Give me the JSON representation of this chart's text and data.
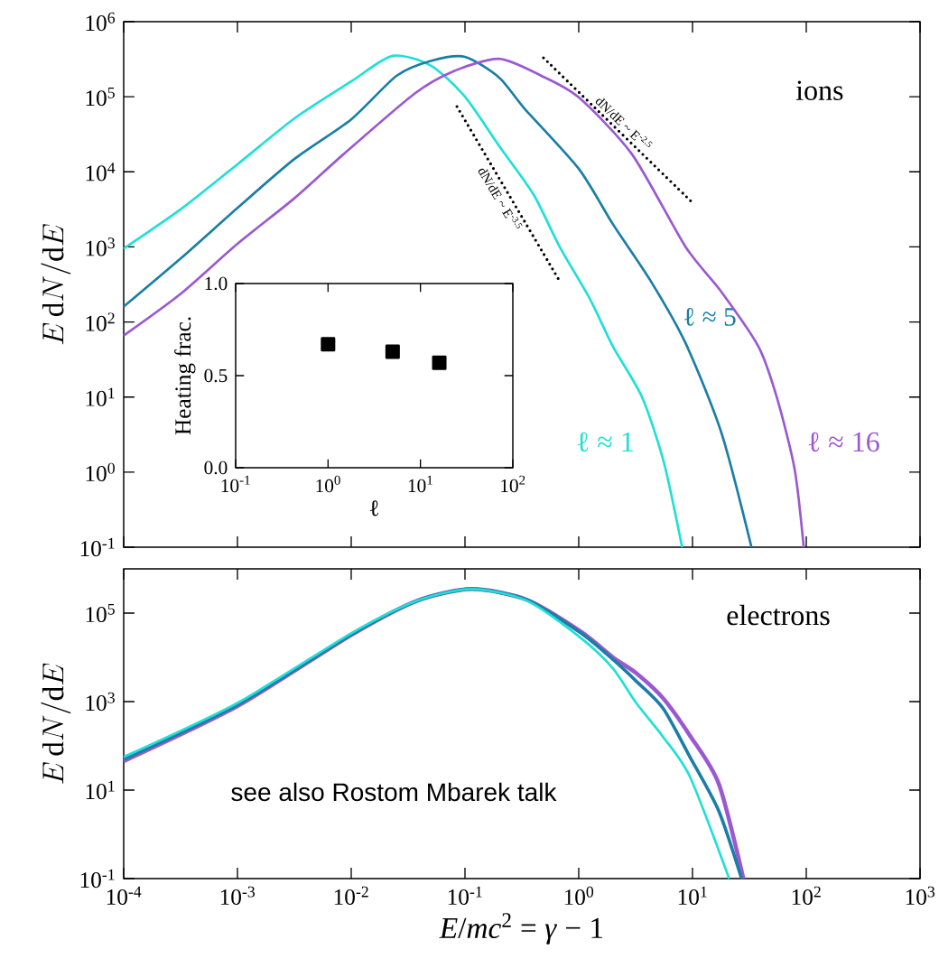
{
  "chart_data": [
    {
      "type": "line",
      "ylabel": "E\\,\\mathrm{d}N/\\mathrm{d}E",
      "log": "xy",
      "tick_labels": "y",
      "xlim": [
        0.0001,
        1000
      ],
      "ylim": [
        0.1,
        1000000
      ],
      "xticks": [
        {
          "value": 0.0001,
          "label": null
        },
        {
          "value": 0.001,
          "label": null
        },
        {
          "value": 0.01,
          "label": null
        },
        {
          "value": 0.1,
          "label": null
        },
        {
          "value": 1,
          "label": null
        },
        {
          "value": 10,
          "label": null
        },
        {
          "value": 100,
          "label": null
        },
        {
          "value": 1000,
          "label": null
        }
      ],
      "yticks": [
        {
          "value": 0.1,
          "label": "10$^{-1}$"
        },
        {
          "value": 1,
          "label": "10$^{0}$"
        },
        {
          "value": 10,
          "label": "10$^{1}$"
        },
        {
          "value": 100,
          "label": "10$^{2}$"
        },
        {
          "value": 1000,
          "label": "10$^{3}$"
        },
        {
          "value": 10000,
          "label": "10$^{4}$"
        },
        {
          "value": 100000,
          "label": "10$^{5}$"
        },
        {
          "value": 1000000,
          "label": "10$^{6}$"
        }
      ],
      "annotations": [
        "ions"
      ],
      "series": [
        {
          "name": "ℓ ≈ 1",
          "color": "#1fe0d6",
          "x": [
            0.0001,
            0.00032,
            0.001,
            0.0032,
            0.01,
            0.023,
            0.05,
            0.1,
            0.2,
            0.4,
            0.68,
            1.26,
            2.0,
            3.6,
            5.6,
            8.1
          ],
          "values": [
            950,
            3200,
            12600,
            52000,
            160000,
            350000,
            260000,
            100000,
            22000,
            5000,
            1000,
            200,
            47,
            10,
            1.35,
            0.1
          ]
        },
        {
          "name": "ℓ ≈ 5",
          "color": "#1a7ea6",
          "x": [
            0.0001,
            0.00032,
            0.001,
            0.0032,
            0.01,
            0.025,
            0.05,
            0.1,
            0.2,
            0.33,
            1.0,
            2.0,
            4.3,
            8.7,
            18,
            33
          ],
          "values": [
            160,
            710,
            3300,
            15000,
            50000,
            190000,
            300000,
            340000,
            180000,
            71000,
            11000,
            2000,
            350,
            52,
            3.3,
            0.1
          ]
        },
        {
          "name": "ℓ ≈ 16",
          "color": "#9b59d0",
          "x": [
            0.0001,
            0.00032,
            0.001,
            0.0032,
            0.0085,
            0.036,
            0.08,
            0.2,
            0.47,
            1.0,
            2.95,
            8.7,
            18,
            38,
            55,
            79,
            95
          ],
          "values": [
            66,
            240,
            1100,
            4500,
            17000,
            110000,
            220000,
            320000,
            190000,
            98000,
            17000,
            1000,
            250,
            47,
            10,
            1.1,
            0.1
          ]
        },
        {
          "name": "dN/dE ~ E$^{-3.5}$",
          "color": "#000000",
          "line_style": "dotted",
          "x": [
            0.085,
            0.68
          ],
          "values": [
            74000,
            350
          ]
        },
        {
          "name": "dN/dE ~ E$^{-2.5}$",
          "color": "#000000",
          "line_style": "dotted",
          "x": [
            0.49,
            9.8
          ],
          "values": [
            330000,
            4000
          ]
        }
      ]
    },
    {
      "type": "scatter",
      "xlabel": "ℓ",
      "ylabel": "Heating frac.",
      "log": "x",
      "marker": "square",
      "xlim": [
        0.1,
        100
      ],
      "ylim": [
        0,
        1
      ],
      "xticks": [
        {
          "value": 0.1,
          "label": "10$^{-1}$"
        },
        {
          "value": 1,
          "label": "10$^{0}$"
        },
        {
          "value": 10,
          "label": "10$^{1}$"
        },
        {
          "value": 100,
          "label": "10$^{2}$"
        }
      ],
      "yticks": [
        {
          "value": 0,
          "label": "0.0"
        },
        {
          "value": 0.5,
          "label": "0.5"
        },
        {
          "value": 1,
          "label": "1.0"
        }
      ],
      "series": [
        {
          "color": "#000000",
          "x": [
            1,
            5,
            16
          ],
          "values": [
            0.67,
            0.63,
            0.57
          ]
        }
      ]
    },
    {
      "type": "line",
      "xlabel": "*E*/*mc*$^{2}$ = *γ* − 1",
      "ylabel": "E\\,\\mathrm{d}N/\\mathrm{d}E",
      "log": "xy",
      "xlim": [
        0.0001,
        1000
      ],
      "ylim": [
        0.1,
        1000000
      ],
      "xticks": [
        {
          "value": 0.0001,
          "label": "10$^{-4}$"
        },
        {
          "value": 0.001,
          "label": "10$^{-3}$"
        },
        {
          "value": 0.01,
          "label": "10$^{-2}$"
        },
        {
          "value": 0.1,
          "label": "10$^{-1}$"
        },
        {
          "value": 1,
          "label": "10$^{0}$"
        },
        {
          "value": 10,
          "label": "10$^{1}$"
        },
        {
          "value": 100,
          "label": "10$^{2}$"
        },
        {
          "value": 1000,
          "label": "10$^{3}$"
        }
      ],
      "yticks": [
        {
          "value": 0.1,
          "label": "10$^{-1}$"
        },
        {
          "value": 10,
          "label": "10$^{1}$"
        },
        {
          "value": 1000,
          "label": "10$^{3}$"
        },
        {
          "value": 100000,
          "label": "10$^{5}$"
        }
      ],
      "annotations": [
        "electrons",
        "see also Rostom Mbarek talk"
      ],
      "series": [
        {
          "color": "#9b59d0",
          "x": [
            0.0001,
            0.001,
            0.01,
            0.038,
            0.115,
            0.35,
            1.05,
            2.0,
            3.2,
            5.5,
            9.5,
            17,
            28
          ],
          "values": [
            45,
            790,
            32000,
            190000,
            350000,
            200000,
            38000,
            10000,
            4400,
            1200,
            170,
            14,
            0.1
          ]
        },
        {
          "color": "#1a7ea6",
          "x": [
            0.0001,
            0.001,
            0.01,
            0.038,
            0.115,
            0.35,
            1.05,
            2.0,
            3.2,
            5.5,
            9.5,
            17,
            27
          ],
          "values": [
            50,
            850,
            33000,
            190000,
            350000,
            200000,
            35000,
            8900,
            2900,
            710,
            56,
            3.4,
            0.1
          ]
        },
        {
          "color": "#1fe0d6",
          "x": [
            0.0001,
            0.001,
            0.01,
            0.038,
            0.115,
            0.35,
            1.05,
            2.0,
            3.2,
            5.5,
            9.5,
            21
          ],
          "values": [
            56,
            930,
            35000,
            190000,
            350000,
            190000,
            27000,
            5600,
            930,
            160,
            20,
            0.1
          ]
        }
      ]
    }
  ]
}
